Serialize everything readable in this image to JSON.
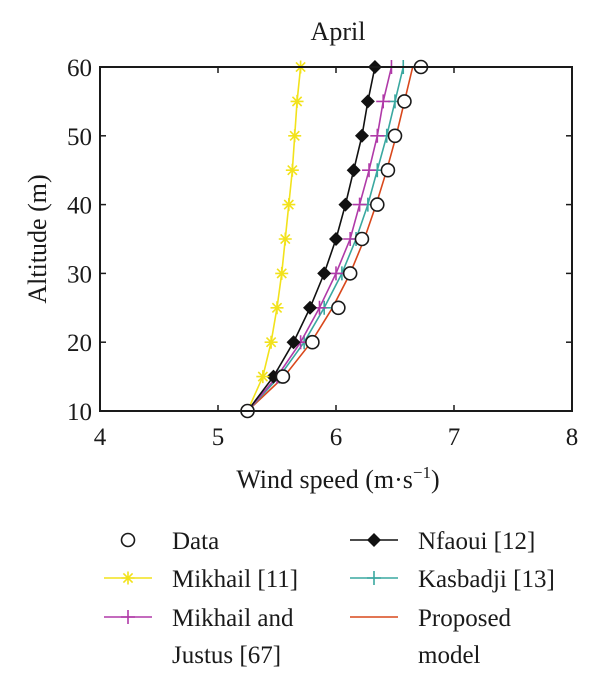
{
  "chart_data": {
    "type": "line",
    "title": "April",
    "xlabel": "Wind speed (m·s",
    "xlabel_sup": "−1",
    "xlabel_suffix": ")",
    "ylabel": "Altitude (m)",
    "xlim": [
      4,
      8
    ],
    "ylim": [
      10,
      60
    ],
    "xticks": [
      "4",
      "5",
      "6",
      "7",
      "8"
    ],
    "yticks": [
      "10",
      "20",
      "30",
      "40",
      "50",
      "60"
    ],
    "grid": false,
    "legend_position": "below",
    "series": [
      {
        "name": "Data",
        "marker": "circle",
        "line": false,
        "color": "#1a1a1a",
        "points": [
          [
            5.25,
            10
          ],
          [
            5.55,
            15
          ],
          [
            5.8,
            20
          ],
          [
            6.02,
            25
          ],
          [
            6.12,
            30
          ],
          [
            6.22,
            35
          ],
          [
            6.35,
            40
          ],
          [
            6.44,
            45
          ],
          [
            6.5,
            50
          ],
          [
            6.58,
            55
          ],
          [
            6.72,
            60
          ]
        ]
      },
      {
        "name": "Mikhail [11]",
        "marker": "asterisk",
        "line": true,
        "color": "#f2e21b",
        "points": [
          [
            5.25,
            10
          ],
          [
            5.38,
            15
          ],
          [
            5.45,
            20
          ],
          [
            5.5,
            25
          ],
          [
            5.54,
            30
          ],
          [
            5.57,
            35
          ],
          [
            5.6,
            40
          ],
          [
            5.63,
            45
          ],
          [
            5.65,
            50
          ],
          [
            5.67,
            55
          ],
          [
            5.7,
            60
          ]
        ]
      },
      {
        "name": "Mikhail and",
        "name_line2": "Justus [67]",
        "marker": "plus",
        "line": true,
        "color": "#b03aa8",
        "points": [
          [
            5.25,
            10
          ],
          [
            5.5,
            15
          ],
          [
            5.7,
            20
          ],
          [
            5.86,
            25
          ],
          [
            6.0,
            30
          ],
          [
            6.12,
            35
          ],
          [
            6.2,
            40
          ],
          [
            6.28,
            45
          ],
          [
            6.35,
            50
          ],
          [
            6.4,
            55
          ],
          [
            6.47,
            60
          ]
        ]
      },
      {
        "name": "Nfaoui [12]",
        "marker": "diamond",
        "line": true,
        "color": "#111111",
        "points": [
          [
            5.25,
            10
          ],
          [
            5.47,
            15
          ],
          [
            5.64,
            20
          ],
          [
            5.78,
            25
          ],
          [
            5.9,
            30
          ],
          [
            6.0,
            35
          ],
          [
            6.08,
            40
          ],
          [
            6.15,
            45
          ],
          [
            6.22,
            50
          ],
          [
            6.27,
            55
          ],
          [
            6.33,
            60
          ]
        ]
      },
      {
        "name": "Kasbadji [13]",
        "marker": "plus",
        "line": true,
        "color": "#3aa8a0",
        "points": [
          [
            5.25,
            10
          ],
          [
            5.52,
            15
          ],
          [
            5.73,
            20
          ],
          [
            5.9,
            25
          ],
          [
            6.05,
            30
          ],
          [
            6.17,
            35
          ],
          [
            6.27,
            40
          ],
          [
            6.35,
            45
          ],
          [
            6.43,
            50
          ],
          [
            6.5,
            55
          ],
          [
            6.57,
            60
          ]
        ]
      },
      {
        "name": "Proposed",
        "name_line2": "model",
        "marker": "none",
        "line": true,
        "color": "#d9481c",
        "points": [
          [
            5.25,
            10
          ],
          [
            5.56,
            15
          ],
          [
            5.79,
            20
          ],
          [
            5.97,
            25
          ],
          [
            6.12,
            30
          ],
          [
            6.24,
            35
          ],
          [
            6.34,
            40
          ],
          [
            6.43,
            45
          ],
          [
            6.51,
            50
          ],
          [
            6.58,
            55
          ],
          [
            6.65,
            60
          ]
        ]
      }
    ]
  }
}
